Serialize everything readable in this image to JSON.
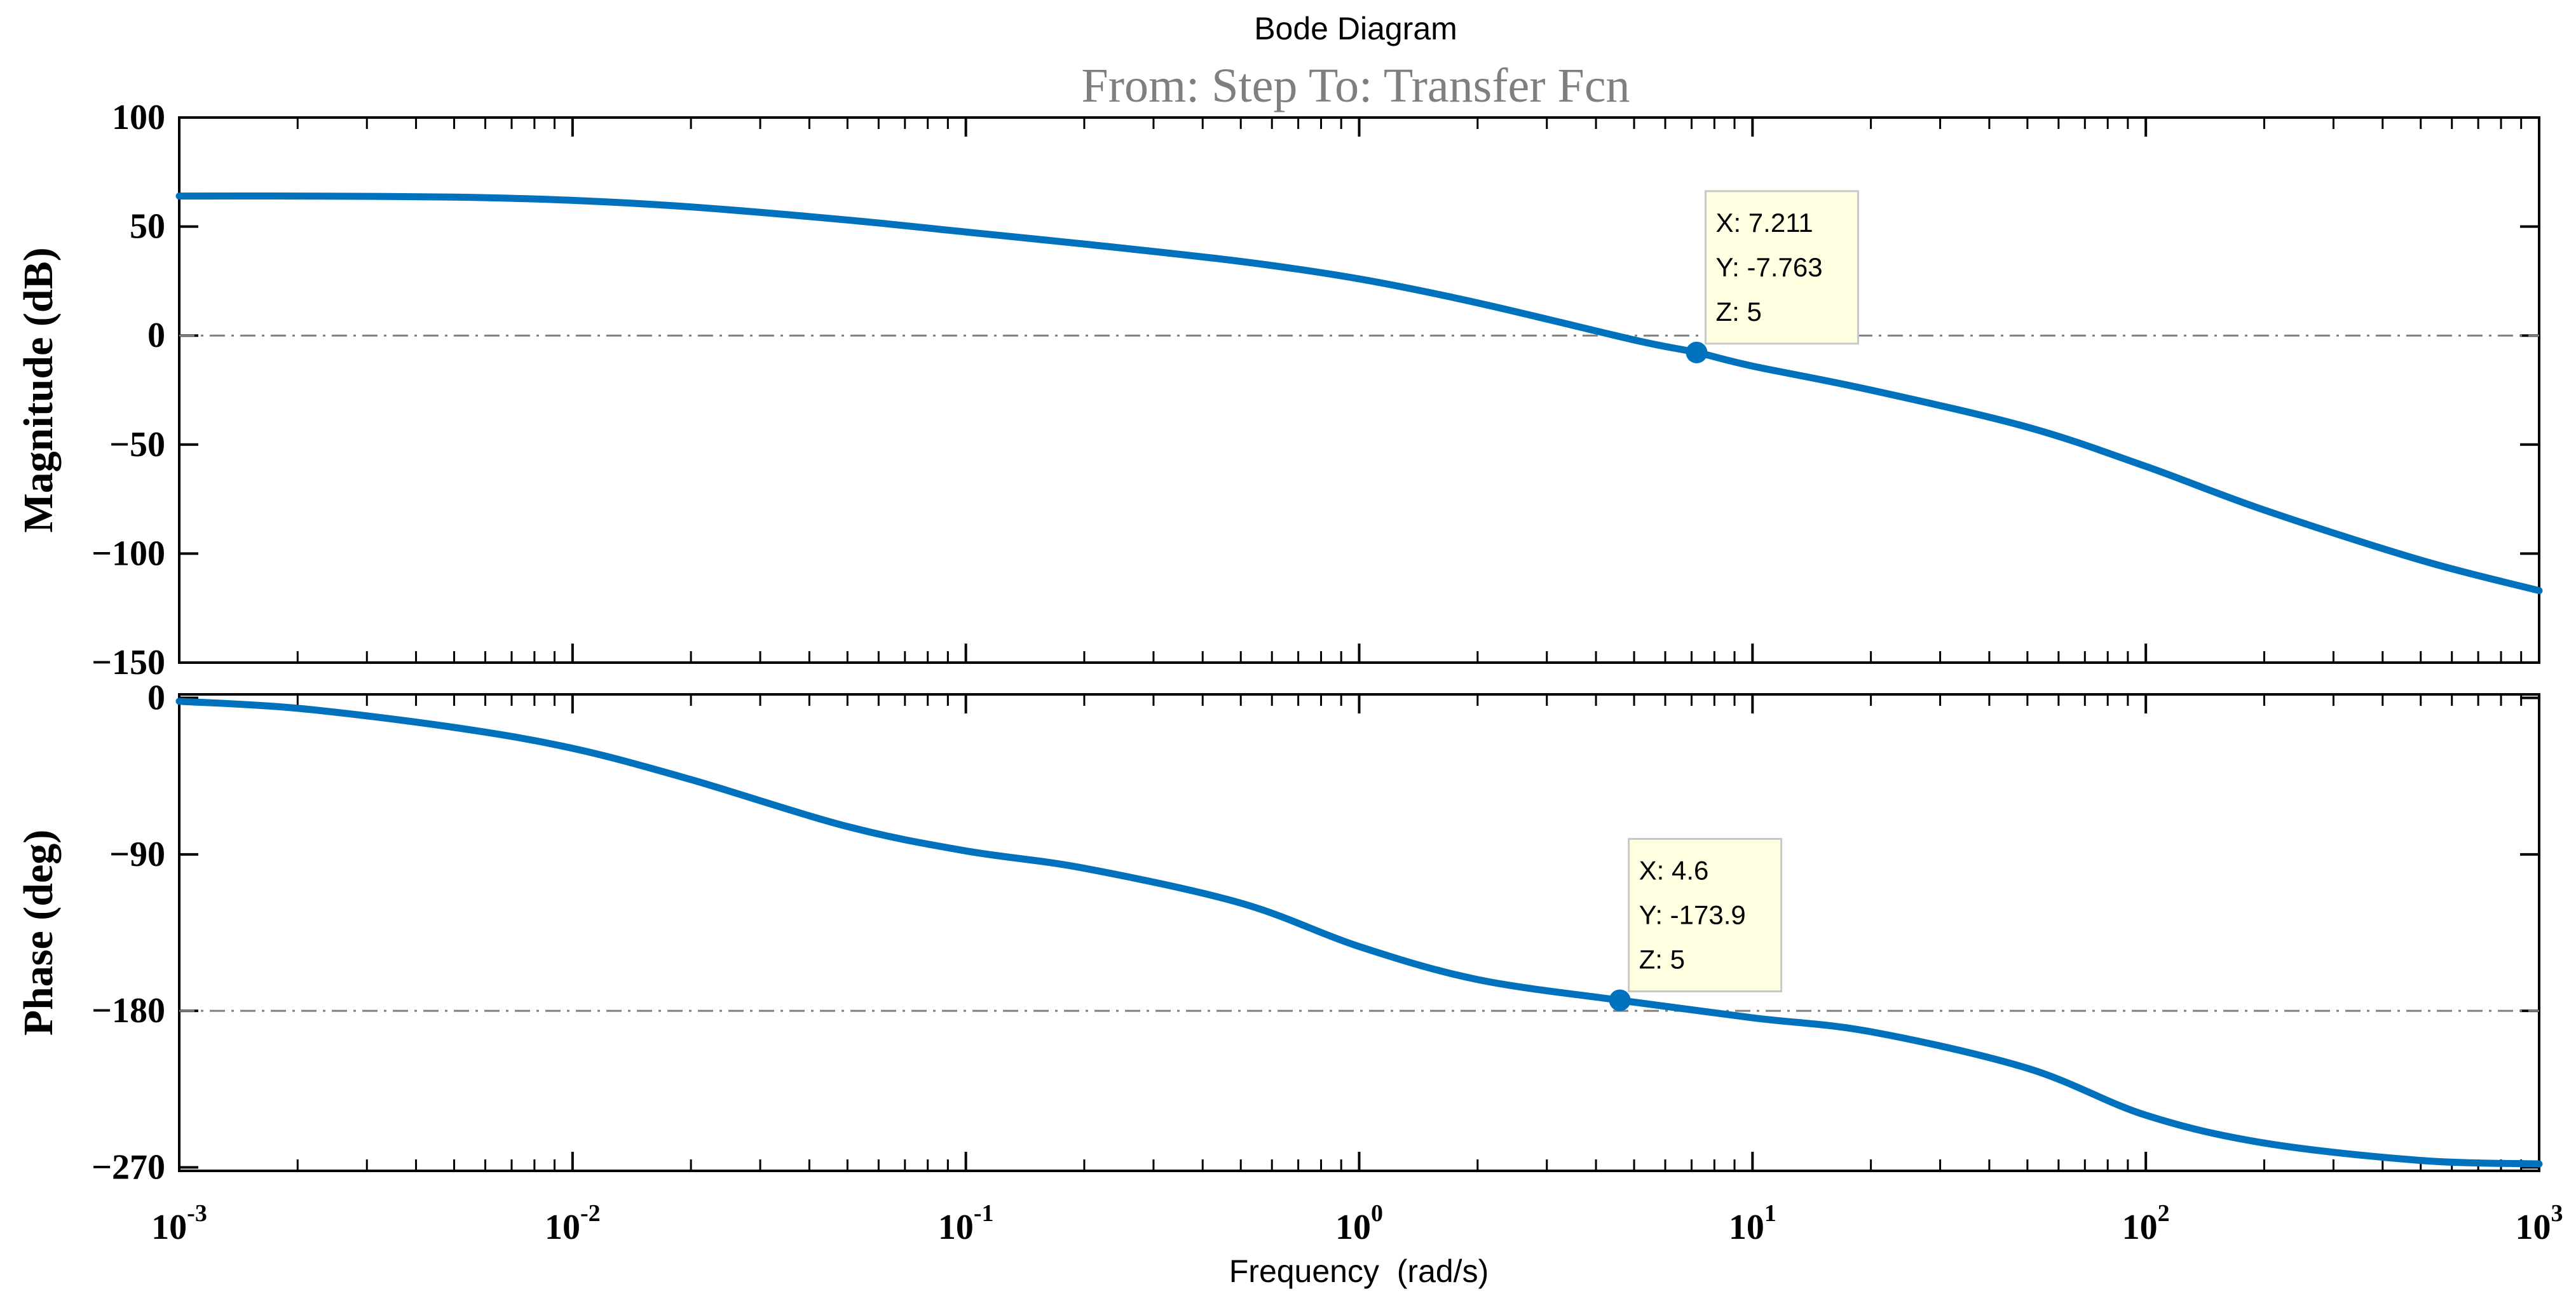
{
  "chart_data": {
    "type": "line",
    "title": "Bode Diagram",
    "subtitle": "From: Step  To: Transfer Fcn",
    "xlabel": "Frequency  (rad/s)",
    "x_scale": "log",
    "xlim": [
      0.001,
      1000
    ],
    "x_tick_labels": [
      {
        "base": "10",
        "exp": "-3"
      },
      {
        "base": "10",
        "exp": "-2"
      },
      {
        "base": "10",
        "exp": "-1"
      },
      {
        "base": "10",
        "exp": "0"
      },
      {
        "base": "10",
        "exp": "1"
      },
      {
        "base": "10",
        "exp": "2"
      },
      {
        "base": "10",
        "exp": "3"
      }
    ],
    "line_color": "#0072BD",
    "reference_line_color": "#7f7f7f",
    "datatip_bg": "#FFFFE1",
    "grid": false,
    "subplots": [
      {
        "ylabel": "Magnitude (dB)",
        "ylim": [
          -150,
          100
        ],
        "yticks": [
          100,
          50,
          0,
          -50,
          -100,
          -150
        ],
        "ytick_labels": [
          "100",
          "50",
          "0",
          "−50",
          "−100",
          "−150"
        ],
        "reference_y": 0,
        "series": {
          "x": [
            0.001,
            0.002,
            0.005,
            0.01,
            0.02,
            0.05,
            0.1,
            0.2,
            0.5,
            1,
            2,
            5,
            7.211,
            10,
            20,
            50,
            100,
            200,
            500,
            1000
          ],
          "y": [
            64,
            64,
            63.5,
            62,
            59,
            53,
            47.5,
            42,
            34,
            26,
            15,
            -2,
            -7.763,
            -14,
            -25,
            -42,
            -60,
            -80,
            -103,
            -117
          ]
        },
        "datatip": {
          "x": 7.211,
          "y": -7.763,
          "lines": [
            "X: 7.211",
            "Y: -7.763",
            "Z: 5"
          ]
        }
      },
      {
        "ylabel": "Phase (deg)",
        "ylim": [
          -272,
          2
        ],
        "yticks": [
          0,
          -90,
          -180,
          -270
        ],
        "ytick_labels": [
          "0",
          "−90",
          "−180",
          "−270"
        ],
        "reference_y": -180,
        "series": {
          "x": [
            0.001,
            0.002,
            0.005,
            0.01,
            0.02,
            0.05,
            0.1,
            0.2,
            0.5,
            1,
            2,
            4.6,
            10,
            20,
            50,
            100,
            200,
            500,
            1000
          ],
          "y": [
            -2,
            -6,
            -17,
            -29,
            -47,
            -74,
            -88,
            -98,
            -118,
            -143,
            -162,
            -173.9,
            -184,
            -192,
            -213,
            -240,
            -256,
            -266,
            -268
          ]
        },
        "datatip": {
          "x": 4.6,
          "y": -173.9,
          "lines": [
            "X: 4.6",
            "Y: -173.9",
            "Z: 5"
          ]
        }
      }
    ]
  }
}
